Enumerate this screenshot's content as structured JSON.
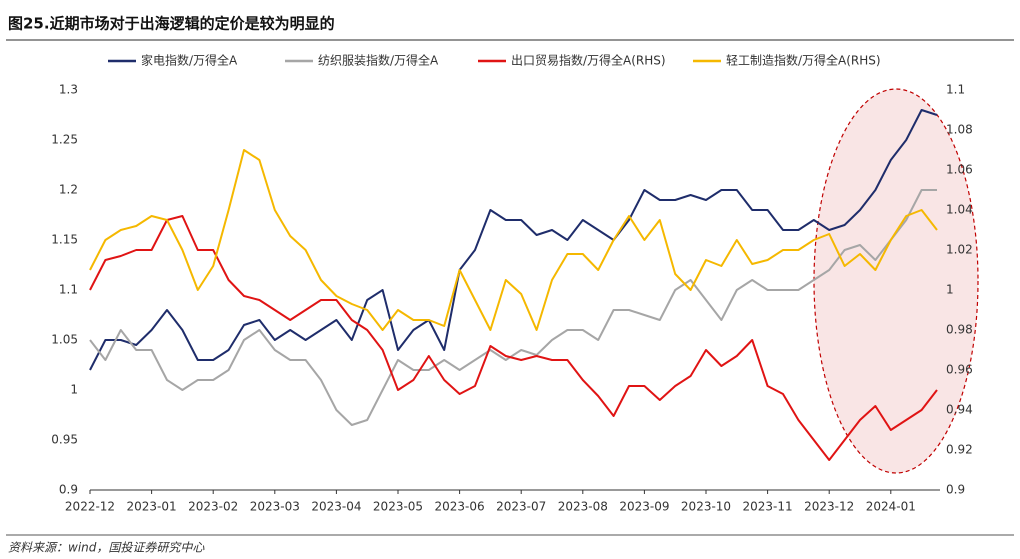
{
  "chart_data": {
    "type": "line",
    "title": "图25.近期市场对于出海逻辑的定价是较为明显的",
    "source": "资料来源：wind，国投证券研究中心",
    "categories": [
      "2022-12",
      null,
      null,
      null,
      "2023-01",
      null,
      null,
      null,
      "2023-02",
      null,
      null,
      null,
      "2023-03",
      null,
      null,
      null,
      "2023-04",
      null,
      null,
      null,
      "2023-05",
      null,
      null,
      null,
      "2023-06",
      null,
      null,
      null,
      "2023-07",
      null,
      null,
      null,
      "2023-08",
      null,
      null,
      null,
      "2023-09",
      null,
      null,
      null,
      "2023-10",
      null,
      null,
      null,
      "2023-11",
      null,
      null,
      null,
      "2023-12",
      null,
      null,
      null,
      "2024-01",
      null,
      null,
      null
    ],
    "ylim": [
      0.9,
      1.3
    ],
    "yticks": [
      1.3,
      1.25,
      1.2,
      1.15,
      1.1,
      1.05,
      1,
      0.95,
      0.9
    ],
    "y2lim": [
      0.9,
      1.1
    ],
    "y2ticks": [
      1.1,
      1.08,
      1.06,
      1.04,
      1.02,
      1,
      0.98,
      0.96,
      0.94,
      0.92,
      0.9
    ],
    "series": [
      {
        "name": "家电指数/万得全A",
        "color": "#1f2d6b",
        "values": [
          1.02,
          1.05,
          1.05,
          1.045,
          1.06,
          1.08,
          1.06,
          1.03,
          1.03,
          1.04,
          1.065,
          1.07,
          1.05,
          1.06,
          1.05,
          1.06,
          1.07,
          1.05,
          1.09,
          1.1,
          1.04,
          1.06,
          1.07,
          1.04,
          1.12,
          1.14,
          1.18,
          1.17,
          1.17,
          1.155,
          1.16,
          1.15,
          1.17,
          1.16,
          1.15,
          1.17,
          1.2,
          1.19,
          1.19,
          1.195,
          1.19,
          1.2,
          1.2,
          1.18,
          1.18,
          1.16,
          1.16,
          1.17,
          1.16,
          1.165,
          1.18,
          1.2,
          1.23,
          1.25,
          1.28,
          1.275
        ]
      },
      {
        "name": "纺织服装指数/万得全A",
        "color": "#a6a6a6",
        "values": [
          1.05,
          1.03,
          1.06,
          1.04,
          1.04,
          1.01,
          1.0,
          1.01,
          1.01,
          1.02,
          1.05,
          1.06,
          1.04,
          1.03,
          1.03,
          1.01,
          0.98,
          0.965,
          0.97,
          1.0,
          1.03,
          1.02,
          1.02,
          1.03,
          1.02,
          1.03,
          1.04,
          1.03,
          1.04,
          1.035,
          1.05,
          1.06,
          1.06,
          1.05,
          1.08,
          1.08,
          1.075,
          1.07,
          1.1,
          1.11,
          1.09,
          1.07,
          1.1,
          1.11,
          1.1,
          1.1,
          1.1,
          1.11,
          1.12,
          1.14,
          1.145,
          1.13,
          1.15,
          1.17,
          1.2,
          1.2
        ]
      },
      {
        "name": "出口贸易指数/万得全A(RHS)",
        "color": "#e01414",
        "axis": "y2",
        "values": [
          1.0,
          1.015,
          1.017,
          1.02,
          1.02,
          1.035,
          1.037,
          1.02,
          1.02,
          1.005,
          0.997,
          0.995,
          0.99,
          0.985,
          0.99,
          0.995,
          0.995,
          0.985,
          0.98,
          0.97,
          0.95,
          0.955,
          0.967,
          0.955,
          0.948,
          0.952,
          0.972,
          0.967,
          0.965,
          0.967,
          0.965,
          0.965,
          0.955,
          0.947,
          0.937,
          0.952,
          0.952,
          0.945,
          0.952,
          0.957,
          0.97,
          0.962,
          0.967,
          0.975,
          0.952,
          0.948,
          0.935,
          0.925,
          0.915,
          0.925,
          0.935,
          0.942,
          0.93,
          0.935,
          0.94,
          0.95
        ]
      },
      {
        "name": "轻工制造指数/万得全A(RHS)",
        "color": "#f5b800",
        "axis": "y2",
        "values": [
          1.01,
          1.025,
          1.03,
          1.032,
          1.037,
          1.035,
          1.02,
          1.0,
          1.012,
          1.04,
          1.07,
          1.065,
          1.04,
          1.027,
          1.02,
          1.005,
          0.997,
          0.993,
          0.99,
          0.98,
          0.99,
          0.985,
          0.985,
          0.982,
          1.01,
          0.995,
          0.98,
          1.005,
          0.998,
          0.98,
          1.005,
          1.018,
          1.018,
          1.01,
          1.025,
          1.037,
          1.025,
          1.035,
          1.008,
          1.0,
          1.015,
          1.012,
          1.025,
          1.013,
          1.015,
          1.02,
          1.02,
          1.025,
          1.028,
          1.012,
          1.018,
          1.01,
          1.025,
          1.037,
          1.04,
          1.03
        ]
      }
    ]
  }
}
